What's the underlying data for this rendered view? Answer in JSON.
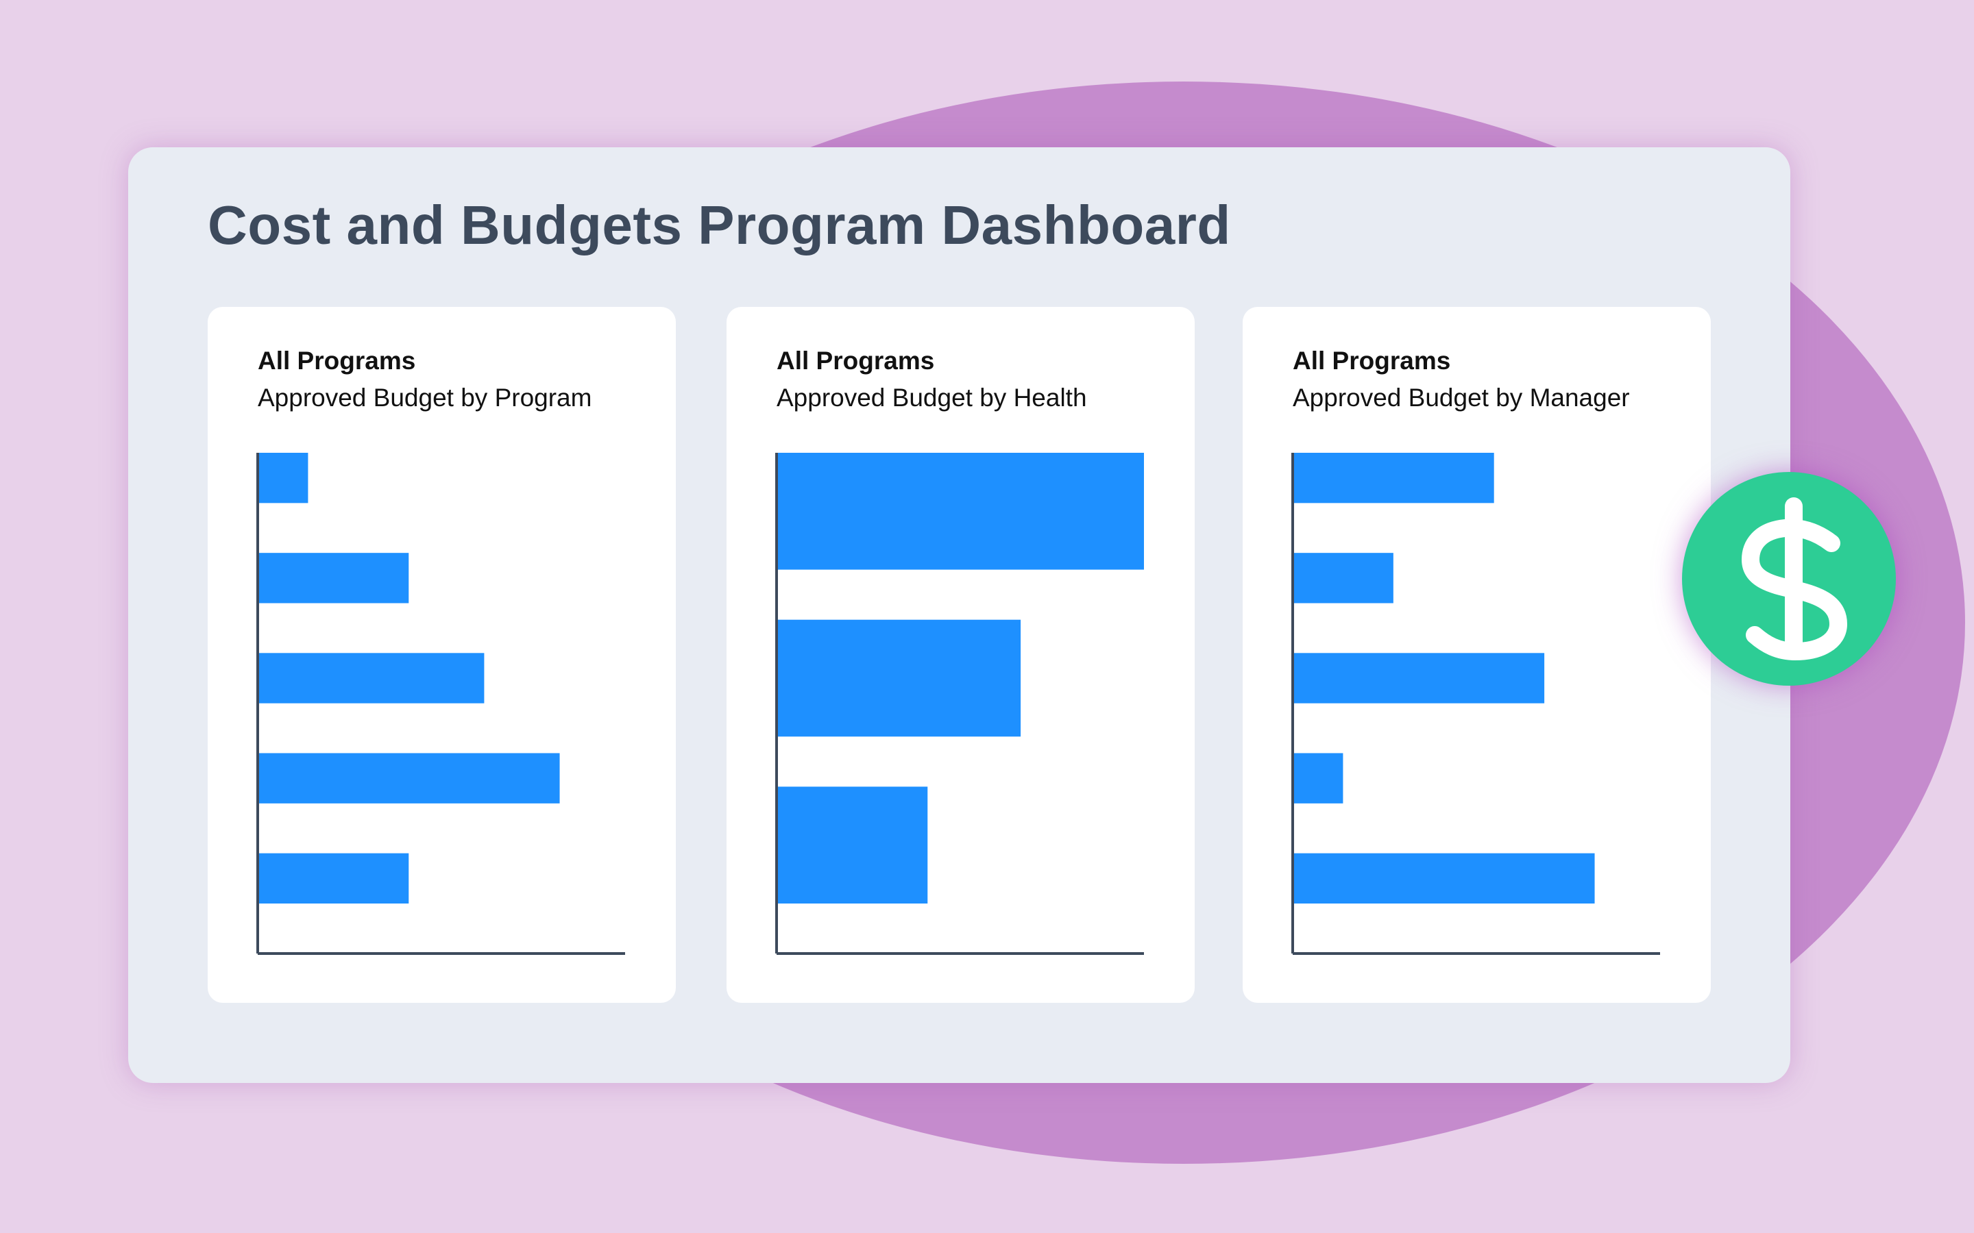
{
  "title": "Cost and Budgets Program Dashboard",
  "colors": {
    "background": "#e8d1ea",
    "blob": "#c58bcd",
    "panel": "#e8ecf3",
    "bar": "#1e90ff",
    "axis": "#3d4a5c",
    "coin": "#2dcd95"
  },
  "badge_icon": "dollar-sign-icon",
  "chart_data": [
    {
      "type": "bar",
      "orientation": "horizontal",
      "title": "All Programs",
      "subtitle": "Approved Budget by Program",
      "values": [
        1,
        3,
        4.5,
        6,
        3
      ],
      "xlim": [
        0,
        7.3
      ],
      "grid": false
    },
    {
      "type": "bar",
      "orientation": "horizontal",
      "title": "All Programs",
      "subtitle": "Approved Budget by Health",
      "values": [
        7.3,
        4.85,
        3
      ],
      "xlim": [
        0,
        7.3
      ],
      "grid": false
    },
    {
      "type": "bar",
      "orientation": "horizontal",
      "title": "All Programs",
      "subtitle": "Approved Budget by Manager",
      "values": [
        4,
        2,
        5,
        1,
        6
      ],
      "xlim": [
        0,
        7.3
      ],
      "grid": false
    }
  ]
}
